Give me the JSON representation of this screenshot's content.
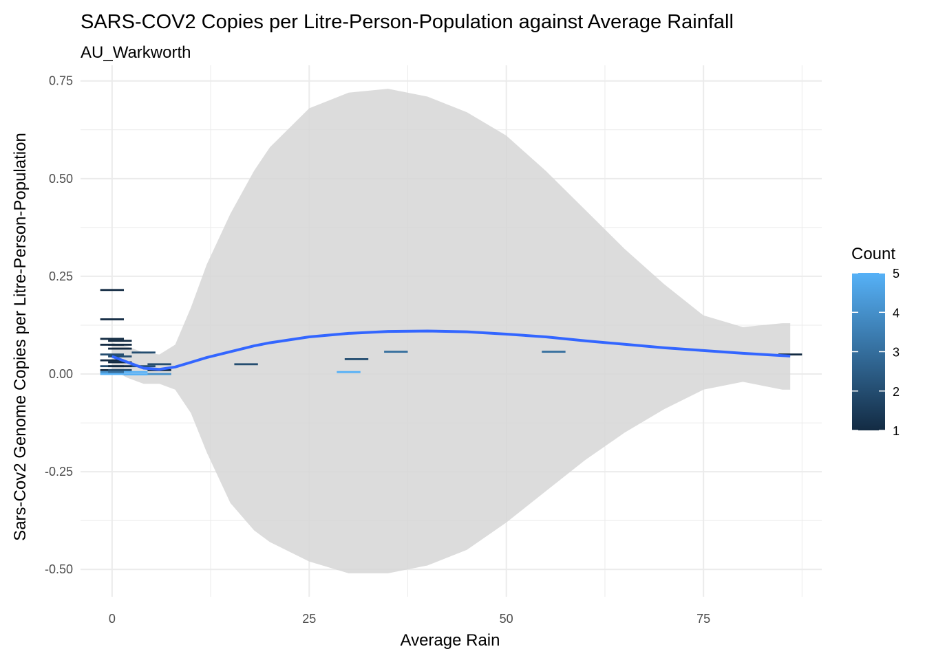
{
  "chart_data": {
    "type": "heatmap",
    "title": "SARS-COV2 Copies per Litre-Person-Population against Average Rainfall",
    "subtitle": "AU_Warkworth",
    "xlabel": "Average Rain",
    "ylabel": "Sars-Cov2 Genome Copies per Litre-Person-Population",
    "xlim": [
      -4,
      90
    ],
    "ylim": [
      -0.57,
      0.79
    ],
    "x_ticks": [
      0,
      25,
      50,
      75
    ],
    "x_tick_labels": [
      "0",
      "25",
      "50",
      "75"
    ],
    "y_ticks": [
      -0.5,
      -0.25,
      0,
      0.25,
      0.5,
      0.75
    ],
    "y_tick_labels": [
      "-0.50",
      "-0.25",
      "0.00",
      "0.25",
      "0.50",
      "0.75"
    ],
    "grid": true,
    "bin": {
      "width": 3,
      "height": 0.005
    },
    "bins": [
      {
        "x": 0,
        "y": 0.215,
        "count": 1
      },
      {
        "x": 0,
        "y": 0.14,
        "count": 1
      },
      {
        "x": 0,
        "y": 0.09,
        "count": 1
      },
      {
        "x": 0,
        "y": 0.075,
        "count": 1
      },
      {
        "x": 0,
        "y": 0.05,
        "count": 2
      },
      {
        "x": 0,
        "y": 0.035,
        "count": 1
      },
      {
        "x": 0,
        "y": 0.02,
        "count": 2
      },
      {
        "x": 0,
        "y": 0.01,
        "count": 1
      },
      {
        "x": 0,
        "y": 0.005,
        "count": 4
      },
      {
        "x": 0,
        "y": 0.0,
        "count": 5
      },
      {
        "x": 1,
        "y": 0.085,
        "count": 1
      },
      {
        "x": 1,
        "y": 0.075,
        "count": 1
      },
      {
        "x": 1,
        "y": 0.065,
        "count": 1
      },
      {
        "x": 1,
        "y": 0.045,
        "count": 2
      },
      {
        "x": 1,
        "y": 0.03,
        "count": 1
      },
      {
        "x": 1,
        "y": 0.02,
        "count": 1
      },
      {
        "x": 1,
        "y": 0.01,
        "count": 2
      },
      {
        "x": 1,
        "y": 0.005,
        "count": 3
      },
      {
        "x": 3,
        "y": 0.005,
        "count": 5
      },
      {
        "x": 3,
        "y": -0.001,
        "count": 5
      },
      {
        "x": 4,
        "y": 0.055,
        "count": 2
      },
      {
        "x": 4,
        "y": 0.02,
        "count": 2
      },
      {
        "x": 6,
        "y": 0.025,
        "count": 2
      },
      {
        "x": 6,
        "y": 0.01,
        "count": 1
      },
      {
        "x": 6,
        "y": 0.0,
        "count": 4
      },
      {
        "x": 17,
        "y": 0.025,
        "count": 2
      },
      {
        "x": 30,
        "y": 0.005,
        "count": 5
      },
      {
        "x": 31,
        "y": 0.038,
        "count": 2
      },
      {
        "x": 36,
        "y": 0.057,
        "count": 3
      },
      {
        "x": 56,
        "y": 0.057,
        "count": 3
      },
      {
        "x": 86,
        "y": 0.05,
        "count": 1
      }
    ],
    "smooth": {
      "x": [
        0,
        2,
        4,
        6,
        8,
        10,
        12,
        15,
        18,
        20,
        25,
        30,
        35,
        40,
        45,
        50,
        55,
        60,
        65,
        70,
        75,
        80,
        85,
        86
      ],
      "y": [
        0.045,
        0.03,
        0.015,
        0.012,
        0.018,
        0.03,
        0.042,
        0.057,
        0.072,
        0.08,
        0.095,
        0.104,
        0.109,
        0.11,
        0.108,
        0.102,
        0.095,
        0.085,
        0.076,
        0.067,
        0.06,
        0.053,
        0.047,
        0.046
      ],
      "lower": [
        0.01,
        -0.01,
        -0.025,
        -0.025,
        -0.04,
        -0.1,
        -0.2,
        -0.33,
        -0.4,
        -0.43,
        -0.48,
        -0.51,
        -0.51,
        -0.49,
        -0.45,
        -0.38,
        -0.3,
        -0.22,
        -0.15,
        -0.09,
        -0.04,
        -0.02,
        -0.04,
        -0.04
      ],
      "upper": [
        0.08,
        0.07,
        0.055,
        0.05,
        0.075,
        0.17,
        0.28,
        0.41,
        0.52,
        0.58,
        0.68,
        0.72,
        0.73,
        0.71,
        0.67,
        0.61,
        0.52,
        0.42,
        0.32,
        0.23,
        0.15,
        0.12,
        0.13,
        0.13
      ]
    },
    "colors": {
      "smooth_line": "#3366ff",
      "ribbon": "#d6d6d6",
      "grid": "#ebebeb",
      "count_low": "#132b43",
      "count_high": "#56b1f7"
    },
    "legend": {
      "title": "Count",
      "placement": "right",
      "range": [
        1,
        5
      ],
      "ticks": [
        1,
        2,
        3,
        4,
        5
      ],
      "tick_labels": [
        "1",
        "2",
        "3",
        "4",
        "5"
      ]
    }
  }
}
